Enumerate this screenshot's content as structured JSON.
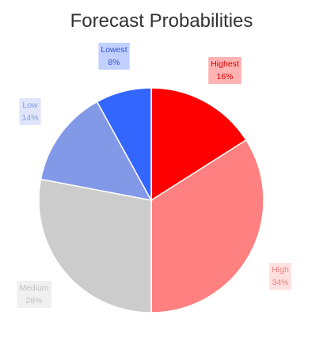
{
  "chart_data": {
    "type": "pie",
    "title": "Forecast Probabilities",
    "slices": [
      {
        "label": "Highest",
        "value": 16,
        "value_text": "16%",
        "color": "#ff0000",
        "label_color": "#d60000",
        "label_bg": "#ffb3b3"
      },
      {
        "label": "High",
        "value": 34,
        "value_text": "34%",
        "color": "#ff8080",
        "label_color": "#f08080",
        "label_bg": "#ffe0e0"
      },
      {
        "label": "Medium",
        "value": 28,
        "value_text": "28%",
        "color": "#cccccc",
        "label_color": "#c0c0c0",
        "label_bg": "#f0f0f0"
      },
      {
        "label": "Low",
        "value": 14,
        "value_text": "14%",
        "color": "#8299e8",
        "label_color": "#8aa0e6",
        "label_bg": "#dfe5fa"
      },
      {
        "label": "Lowest",
        "value": 8,
        "value_text": "8%",
        "color": "#3366ff",
        "label_color": "#2b55e0",
        "label_bg": "#c2d0ff"
      }
    ],
    "start_angle_deg": 0,
    "direction": "clockwise",
    "legend": "none"
  }
}
